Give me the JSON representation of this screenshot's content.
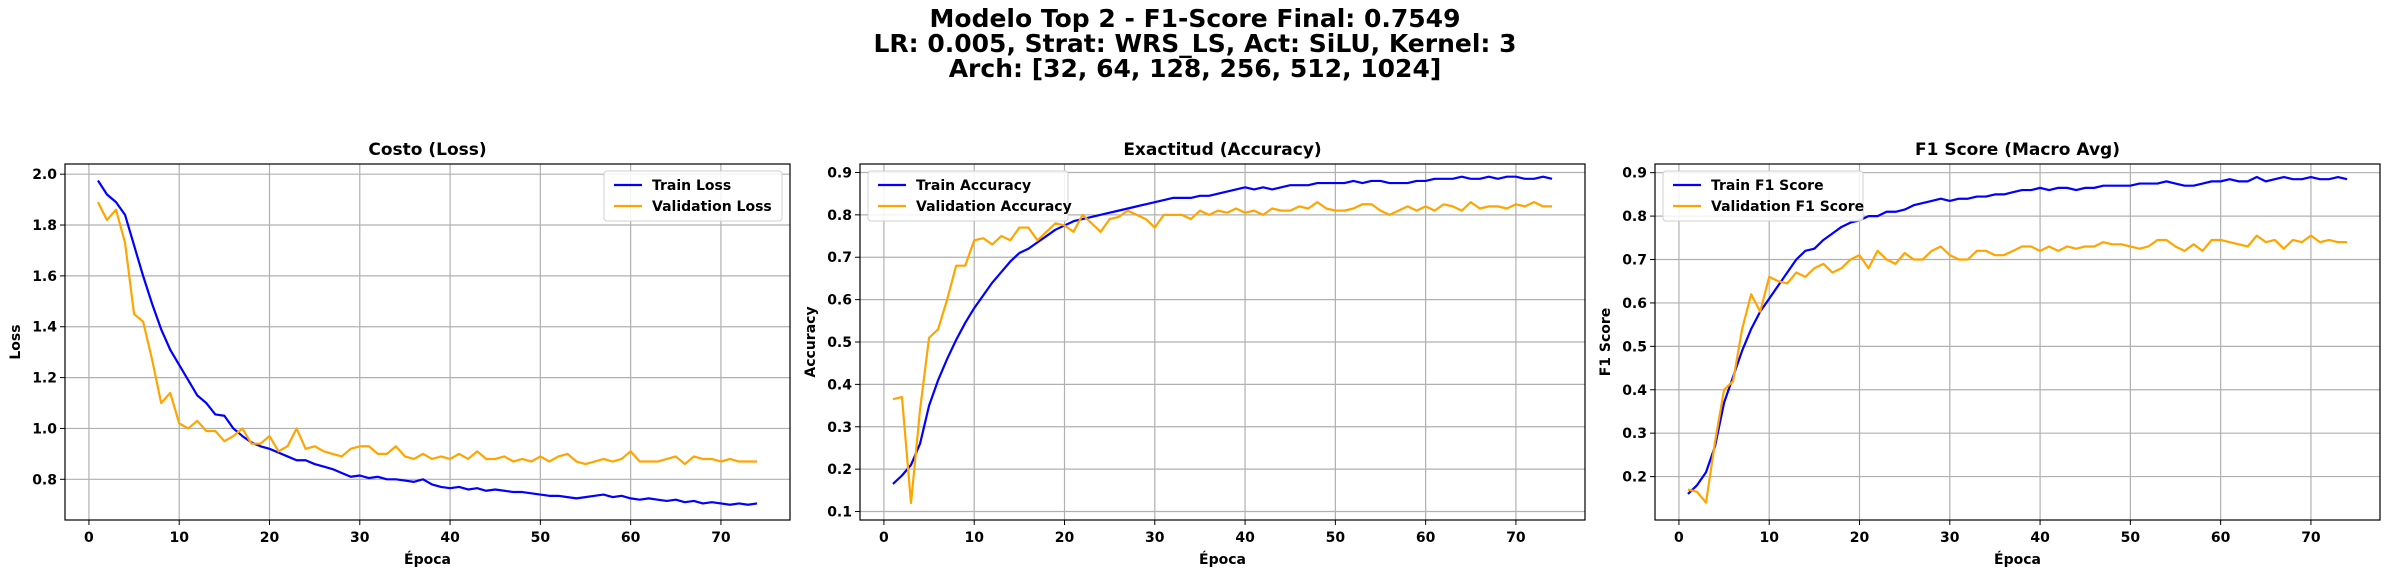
{
  "figure": {
    "suptitle_lines": [
      "Modelo Top 2 - F1-Score Final: 0.7549",
      "LR: 0.005, Strat: WRS_LS, Act: SiLU, Kernel: 3",
      "Arch: [32, 64, 128, 256, 512, 1024]"
    ]
  },
  "colors": {
    "train": "#0000ff",
    "validation": "#ffa500",
    "grid": "#b0b0b0"
  },
  "chart_data": [
    {
      "type": "line",
      "title": "Costo (Loss)",
      "xlabel": "Época",
      "ylabel": "Loss",
      "xlim": [
        -2.65,
        77.65
      ],
      "ylim": [
        0.64,
        2.04
      ],
      "xticks": [
        0,
        10,
        20,
        30,
        40,
        50,
        60,
        70
      ],
      "yticks": [
        0.8,
        1.0,
        1.2,
        1.4,
        1.6,
        1.8,
        2.0
      ],
      "ytick_labels": [
        "0.8",
        "1.0",
        "1.2",
        "1.4",
        "1.6",
        "1.8",
        "2.0"
      ],
      "grid": true,
      "legend_position": "top-right",
      "x_start": 1,
      "series": [
        {
          "name": "Train Loss",
          "color": "#0000ff",
          "values": [
            1.975,
            1.92,
            1.89,
            1.84,
            1.72,
            1.6,
            1.49,
            1.39,
            1.31,
            1.25,
            1.19,
            1.13,
            1.1,
            1.055,
            1.05,
            1.0,
            0.97,
            0.945,
            0.93,
            0.92,
            0.905,
            0.89,
            0.875,
            0.875,
            0.86,
            0.85,
            0.84,
            0.825,
            0.81,
            0.815,
            0.805,
            0.81,
            0.8,
            0.8,
            0.795,
            0.79,
            0.8,
            0.78,
            0.77,
            0.765,
            0.77,
            0.76,
            0.765,
            0.755,
            0.76,
            0.755,
            0.75,
            0.75,
            0.745,
            0.74,
            0.735,
            0.735,
            0.73,
            0.725,
            0.73,
            0.735,
            0.74,
            0.73,
            0.735,
            0.725,
            0.72,
            0.725,
            0.72,
            0.715,
            0.72,
            0.71,
            0.715,
            0.705,
            0.71,
            0.705,
            0.7,
            0.705,
            0.7,
            0.705
          ]
        },
        {
          "name": "Validation Loss",
          "color": "#ffa500",
          "values": [
            1.89,
            1.82,
            1.86,
            1.73,
            1.45,
            1.42,
            1.27,
            1.1,
            1.14,
            1.02,
            1.0,
            1.03,
            0.99,
            0.99,
            0.95,
            0.97,
            1.0,
            0.94,
            0.94,
            0.97,
            0.91,
            0.93,
            1.0,
            0.92,
            0.93,
            0.91,
            0.9,
            0.89,
            0.92,
            0.93,
            0.93,
            0.9,
            0.9,
            0.93,
            0.89,
            0.88,
            0.9,
            0.88,
            0.89,
            0.88,
            0.9,
            0.88,
            0.91,
            0.88,
            0.88,
            0.89,
            0.87,
            0.88,
            0.87,
            0.89,
            0.87,
            0.89,
            0.9,
            0.87,
            0.86,
            0.87,
            0.88,
            0.87,
            0.88,
            0.91,
            0.87,
            0.87,
            0.87,
            0.88,
            0.89,
            0.86,
            0.89,
            0.88,
            0.88,
            0.87,
            0.88,
            0.87,
            0.87,
            0.87
          ]
        }
      ]
    },
    {
      "type": "line",
      "title": "Exactitud (Accuracy)",
      "xlabel": "Época",
      "ylabel": "Accuracy",
      "xlim": [
        -2.65,
        77.65
      ],
      "ylim": [
        0.08,
        0.92
      ],
      "xticks": [
        0,
        10,
        20,
        30,
        40,
        50,
        60,
        70
      ],
      "yticks": [
        0.1,
        0.2,
        0.3,
        0.4,
        0.5,
        0.6,
        0.7,
        0.8,
        0.9
      ],
      "ytick_labels": [
        "0.1",
        "0.2",
        "0.3",
        "0.4",
        "0.5",
        "0.6",
        "0.7",
        "0.8",
        "0.9"
      ],
      "grid": true,
      "legend_position": "top-left",
      "x_start": 1,
      "series": [
        {
          "name": "Train Accuracy",
          "color": "#0000ff",
          "values": [
            0.165,
            0.185,
            0.21,
            0.26,
            0.35,
            0.41,
            0.46,
            0.505,
            0.545,
            0.58,
            0.61,
            0.64,
            0.665,
            0.69,
            0.71,
            0.72,
            0.735,
            0.75,
            0.765,
            0.775,
            0.785,
            0.79,
            0.795,
            0.8,
            0.805,
            0.81,
            0.815,
            0.82,
            0.825,
            0.83,
            0.835,
            0.84,
            0.84,
            0.84,
            0.845,
            0.845,
            0.85,
            0.855,
            0.86,
            0.865,
            0.86,
            0.865,
            0.86,
            0.865,
            0.87,
            0.87,
            0.87,
            0.875,
            0.875,
            0.875,
            0.875,
            0.88,
            0.875,
            0.88,
            0.88,
            0.875,
            0.875,
            0.875,
            0.88,
            0.88,
            0.885,
            0.885,
            0.885,
            0.89,
            0.885,
            0.885,
            0.89,
            0.885,
            0.89,
            0.89,
            0.885,
            0.885,
            0.89,
            0.885
          ]
        },
        {
          "name": "Validation Accuracy",
          "color": "#ffa500",
          "values": [
            0.365,
            0.37,
            0.12,
            0.34,
            0.51,
            0.53,
            0.6,
            0.68,
            0.68,
            0.74,
            0.745,
            0.73,
            0.75,
            0.74,
            0.77,
            0.77,
            0.74,
            0.76,
            0.78,
            0.775,
            0.76,
            0.8,
            0.78,
            0.76,
            0.79,
            0.795,
            0.81,
            0.8,
            0.79,
            0.77,
            0.8,
            0.8,
            0.8,
            0.79,
            0.81,
            0.8,
            0.81,
            0.805,
            0.815,
            0.805,
            0.81,
            0.8,
            0.815,
            0.81,
            0.81,
            0.82,
            0.815,
            0.83,
            0.815,
            0.81,
            0.81,
            0.815,
            0.825,
            0.825,
            0.81,
            0.8,
            0.81,
            0.82,
            0.81,
            0.82,
            0.81,
            0.825,
            0.82,
            0.81,
            0.83,
            0.815,
            0.82,
            0.82,
            0.815,
            0.825,
            0.82,
            0.83,
            0.82,
            0.82
          ]
        }
      ]
    },
    {
      "type": "line",
      "title": "F1 Score (Macro Avg)",
      "xlabel": "Época",
      "ylabel": "F1 Score",
      "xlim": [
        -2.65,
        77.65
      ],
      "ylim": [
        0.1,
        0.92
      ],
      "xticks": [
        0,
        10,
        20,
        30,
        40,
        50,
        60,
        70
      ],
      "yticks": [
        0.2,
        0.3,
        0.4,
        0.5,
        0.6,
        0.7,
        0.8,
        0.9
      ],
      "ytick_labels": [
        "0.2",
        "0.3",
        "0.4",
        "0.5",
        "0.6",
        "0.7",
        "0.8",
        "0.9"
      ],
      "grid": true,
      "legend_position": "top-left",
      "x_start": 1,
      "series": [
        {
          "name": "Train F1 Score",
          "color": "#0000ff",
          "values": [
            0.16,
            0.18,
            0.21,
            0.27,
            0.37,
            0.43,
            0.49,
            0.54,
            0.58,
            0.61,
            0.64,
            0.67,
            0.7,
            0.72,
            0.725,
            0.745,
            0.76,
            0.775,
            0.785,
            0.79,
            0.8,
            0.8,
            0.81,
            0.81,
            0.815,
            0.825,
            0.83,
            0.835,
            0.84,
            0.835,
            0.84,
            0.84,
            0.845,
            0.845,
            0.85,
            0.85,
            0.855,
            0.86,
            0.86,
            0.865,
            0.86,
            0.865,
            0.865,
            0.86,
            0.865,
            0.865,
            0.87,
            0.87,
            0.87,
            0.87,
            0.875,
            0.875,
            0.875,
            0.88,
            0.875,
            0.87,
            0.87,
            0.875,
            0.88,
            0.88,
            0.885,
            0.88,
            0.88,
            0.89,
            0.88,
            0.885,
            0.89,
            0.885,
            0.885,
            0.89,
            0.885,
            0.885,
            0.89,
            0.885
          ]
        },
        {
          "name": "Validation F1 Score",
          "color": "#ffa500",
          "values": [
            0.17,
            0.165,
            0.14,
            0.28,
            0.4,
            0.42,
            0.54,
            0.62,
            0.58,
            0.66,
            0.65,
            0.645,
            0.67,
            0.66,
            0.68,
            0.69,
            0.67,
            0.68,
            0.7,
            0.71,
            0.68,
            0.72,
            0.7,
            0.69,
            0.715,
            0.7,
            0.7,
            0.72,
            0.73,
            0.71,
            0.7,
            0.7,
            0.72,
            0.72,
            0.71,
            0.71,
            0.72,
            0.73,
            0.73,
            0.72,
            0.73,
            0.72,
            0.73,
            0.725,
            0.73,
            0.73,
            0.74,
            0.735,
            0.735,
            0.73,
            0.725,
            0.73,
            0.745,
            0.745,
            0.73,
            0.72,
            0.735,
            0.72,
            0.745,
            0.745,
            0.74,
            0.735,
            0.73,
            0.755,
            0.74,
            0.745,
            0.725,
            0.745,
            0.74,
            0.755,
            0.74,
            0.745,
            0.74,
            0.74
          ]
        }
      ]
    }
  ]
}
